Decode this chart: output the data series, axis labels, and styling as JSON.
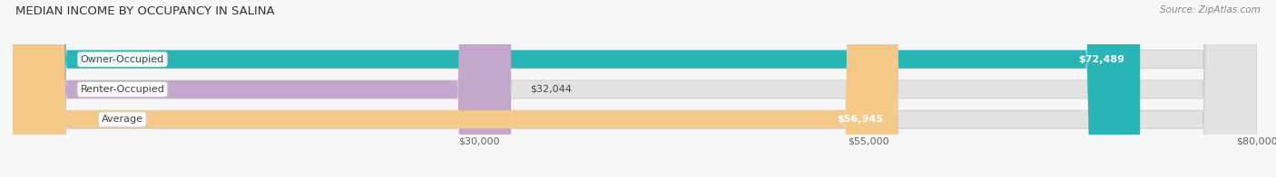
{
  "title": "MEDIAN INCOME BY OCCUPANCY IN SALINA",
  "source": "Source: ZipAtlas.com",
  "categories": [
    "Owner-Occupied",
    "Renter-Occupied",
    "Average"
  ],
  "values": [
    72489,
    32044,
    56945
  ],
  "bar_colors": [
    "#29b5b5",
    "#c4a8cc",
    "#f5c98a"
  ],
  "bar_labels": [
    "$72,489",
    "$32,044",
    "$56,945"
  ],
  "xlim": [
    0,
    80000
  ],
  "xticks": [
    30000,
    55000,
    80000
  ],
  "xticklabels": [
    "$30,000",
    "$55,000",
    "$80,000"
  ],
  "background_color": "#f7f7f7",
  "bar_background_color": "#e2e2e2",
  "title_fontsize": 9.5,
  "label_fontsize": 8,
  "value_fontsize": 8,
  "bar_height": 0.6,
  "label_box_color": "#ffffff",
  "label_text_color": "#444444",
  "value_label_inside_color": "#ffffff",
  "value_label_outside_color": "#444444"
}
